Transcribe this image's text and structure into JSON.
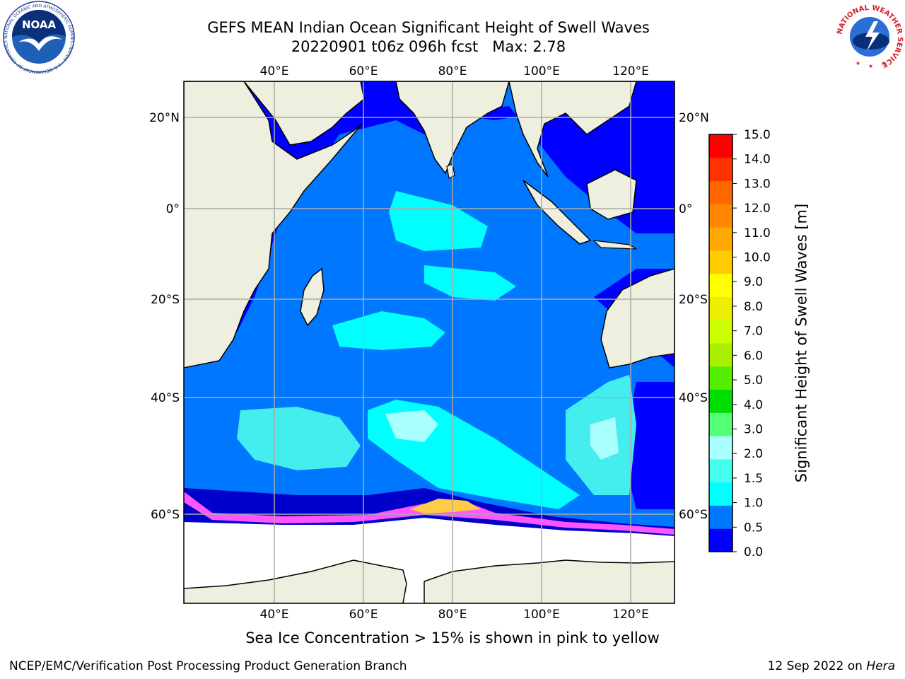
{
  "title": {
    "line1": "GEFS MEAN Indian Ocean Significant Height of Swell Waves",
    "line2": "20220901 t06z 096h fcst   Max: 2.78"
  },
  "map": {
    "region": "Indian Ocean",
    "lon_ticks": [
      "40°E",
      "60°E",
      "80°E",
      "100°E",
      "120°E"
    ],
    "lat_ticks_left": [
      "20°N",
      "0°",
      "20°S",
      "40°S",
      "60°S"
    ],
    "lat_ticks_right": [
      "20°N",
      "0°",
      "20°S",
      "40°S",
      "60°S"
    ],
    "grid": true,
    "land_color": "#efefdf",
    "sea_ice_color_range": [
      "#ff55ff",
      "#ffcc44"
    ]
  },
  "colorbar": {
    "label": "Significant Height of Swell Waves [m]",
    "ticks": [
      "15.0",
      "14.0",
      "13.0",
      "12.0",
      "11.0",
      "10.0",
      "9.0",
      "8.0",
      "7.0",
      "6.0",
      "5.0",
      "4.0",
      "3.0",
      "2.0",
      "1.5",
      "1.0",
      "0.5",
      "0.0"
    ],
    "colors": [
      "#0000ff",
      "#0077ff",
      "#00ffff",
      "#44ffee",
      "#aaffff",
      "#55ff77",
      "#00dd00",
      "#55ee00",
      "#aaee00",
      "#ccff00",
      "#eeee00",
      "#ffff00",
      "#ffcc00",
      "#ffaa00",
      "#ff8800",
      "#ff6600",
      "#ff3300",
      "#ff0000"
    ]
  },
  "caption": "Sea Ice Concentration > 15% is shown in pink to yellow",
  "footer": {
    "left": "NCEP/EMC/Verification Post Processing Product Generation Branch",
    "date": "12 Sep 2022 on ",
    "host": "Hera"
  },
  "logos": {
    "noaa_text": "NOAA",
    "noaa_ring": "NATIONAL OCEANIC AND ATMOSPHERIC ADMINISTRATION · U.S. DEPARTMENT OF COMMERCE ·",
    "nws_ring": "NATIONAL WEATHER SERVICE"
  }
}
